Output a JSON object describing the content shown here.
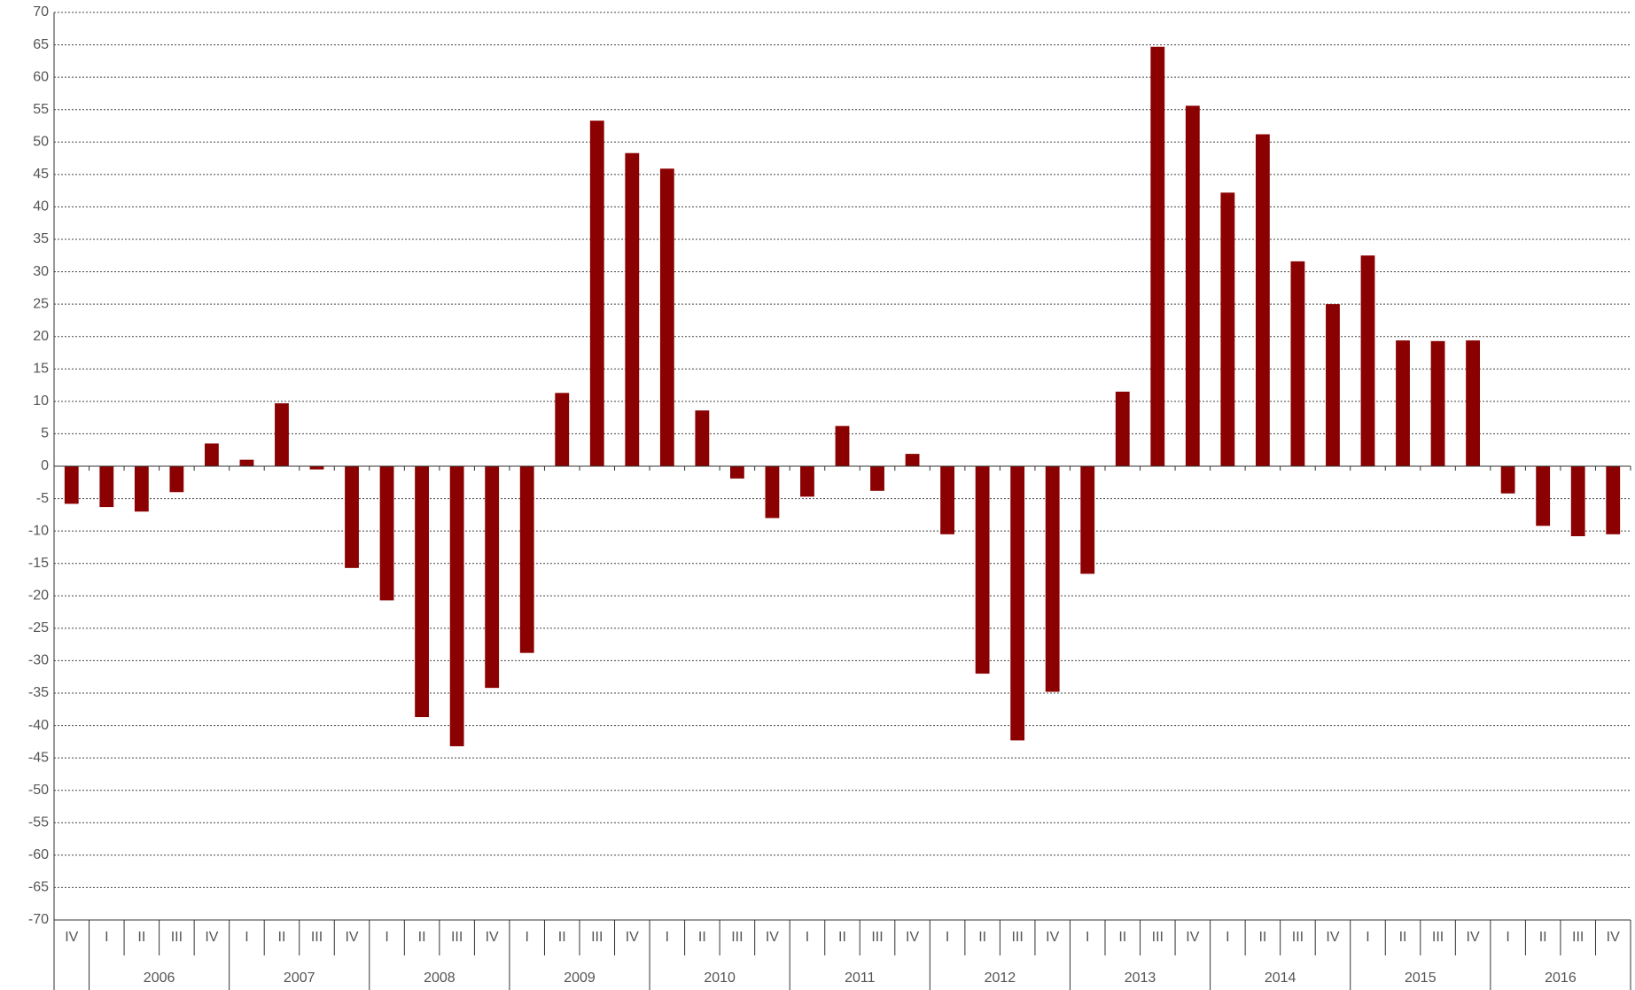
{
  "chart_data": {
    "type": "bar",
    "color": "#8b0000",
    "grid": true,
    "ylim": [
      -70,
      70
    ],
    "yticks": [
      -70,
      -65,
      -60,
      -55,
      -50,
      -45,
      -40,
      -35,
      -30,
      -25,
      -20,
      -15,
      -10,
      -5,
      0,
      5,
      10,
      15,
      20,
      25,
      30,
      35,
      40,
      45,
      50,
      55,
      60,
      65,
      70
    ],
    "groups": [
      {
        "name": null,
        "categories": [
          "IV"
        ]
      },
      {
        "name": "2006",
        "categories": [
          "I",
          "II",
          "III",
          "IV"
        ]
      },
      {
        "name": "2007",
        "categories": [
          "I",
          "II",
          "III",
          "IV"
        ]
      },
      {
        "name": "2008",
        "categories": [
          "I",
          "II",
          "III",
          "IV"
        ]
      },
      {
        "name": "2009",
        "categories": [
          "I",
          "II",
          "III",
          "IV"
        ]
      },
      {
        "name": "2010",
        "categories": [
          "I",
          "II",
          "III",
          "IV"
        ]
      },
      {
        "name": "2011",
        "categories": [
          "I",
          "II",
          "III",
          "IV"
        ]
      },
      {
        "name": "2012",
        "categories": [
          "I",
          "II",
          "III",
          "IV"
        ]
      },
      {
        "name": "2013",
        "categories": [
          "I",
          "II",
          "III",
          "IV"
        ]
      },
      {
        "name": "2014",
        "categories": [
          "I",
          "II",
          "III",
          "IV"
        ]
      },
      {
        "name": "2015",
        "categories": [
          "I",
          "II",
          "III",
          "IV"
        ]
      },
      {
        "name": "2016",
        "categories": [
          "I",
          "II",
          "III",
          "IV"
        ]
      }
    ],
    "values": [
      -5.8,
      -6.3,
      -7,
      -4,
      3.5,
      1,
      9.7,
      -0.5,
      -15.7,
      -20.7,
      -38.7,
      -43.2,
      -34.2,
      -28.8,
      11.3,
      53.3,
      48.3,
      45.9,
      8.6,
      -1.9,
      -8,
      -4.7,
      6.2,
      -3.8,
      1.9,
      -10.5,
      -32,
      -42.3,
      -34.8,
      -16.6,
      11.5,
      64.7,
      55.6,
      42.2,
      51.2,
      31.6,
      25,
      32.5,
      19.4,
      19.3,
      19.4,
      -4.2,
      -9.2,
      -10.8,
      -10.5
    ]
  }
}
